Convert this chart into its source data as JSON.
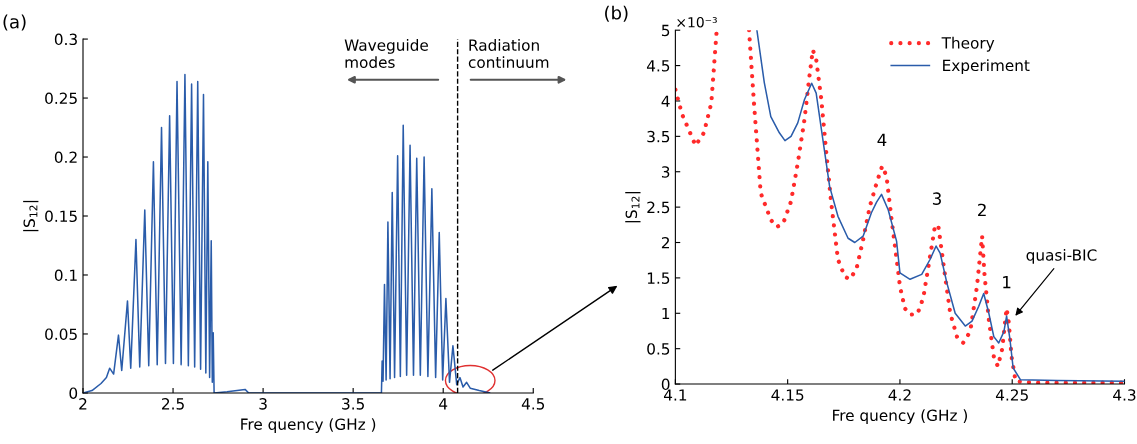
{
  "chart_data": [
    {
      "type": "line",
      "xlabel": "Fre quency (GHz )",
      "ylabel": "|S$_{12}$|",
      "xlim": [
        2,
        4.5
      ],
      "xticks": [
        2,
        2.5,
        3,
        3.5,
        4,
        4.5
      ],
      "ylim": [
        0,
        0.3
      ],
      "yticks": [
        0,
        0.05,
        0.1,
        0.15,
        0.2,
        0.25,
        0.3
      ],
      "grid": false,
      "legend": false,
      "annotations": [
        "(a)",
        "Waveguide\nmodes",
        "Radiation\ncontinuum"
      ],
      "ref_lines": [
        {
          "axis": "x",
          "value": 4.08,
          "color": "#000000",
          "line_style": "dashed"
        }
      ],
      "series": [
        {
          "color": "#2a5caa",
          "line_style": "solid",
          "x": [
            2.0,
            2.05,
            2.1,
            2.13,
            2.148,
            2.17,
            2.197,
            2.215,
            2.247,
            2.265,
            2.294,
            2.315,
            2.343,
            2.365,
            2.391,
            2.412,
            2.436,
            2.458,
            2.481,
            2.502,
            2.522,
            2.545,
            2.566,
            2.585,
            2.603,
            2.62,
            2.637,
            2.653,
            2.669,
            2.682,
            2.693,
            2.703,
            2.712,
            2.718,
            2.723,
            2.728,
            2.8,
            2.9,
            2.92,
            3.657,
            3.661,
            3.666,
            3.674,
            3.683,
            3.693,
            3.705,
            3.717,
            3.73,
            3.747,
            3.762,
            3.778,
            3.797,
            3.816,
            3.835,
            3.853,
            3.873,
            3.894,
            3.915,
            3.937,
            3.958,
            3.978,
            3.997,
            4.015,
            4.035,
            4.054,
            4.075,
            4.093,
            4.11,
            4.13,
            4.15,
            4.2,
            4.257
          ],
          "values": [
            0,
            0.002,
            0.008,
            0.013,
            0.021,
            0.016,
            0.049,
            0.019,
            0.078,
            0.021,
            0.13,
            0.022,
            0.155,
            0.023,
            0.196,
            0.024,
            0.225,
            0.025,
            0.235,
            0.025,
            0.264,
            0.024,
            0.27,
            0.023,
            0.262,
            0.022,
            0.264,
            0.02,
            0.253,
            0.017,
            0.196,
            0.013,
            0.129,
            0.009,
            0.051,
            0,
            0.001,
            0.003,
            0,
            0,
            0.027,
            0.01,
            0.092,
            0.011,
            0.145,
            0.012,
            0.17,
            0.013,
            0.201,
            0.014,
            0.227,
            0.015,
            0.21,
            0.015,
            0.199,
            0.015,
            0.2,
            0.014,
            0.173,
            0.013,
            0.136,
            0.011,
            0.08,
            0.009,
            0.04,
            0.007,
            0.013,
            0.005,
            0.009,
            0.004,
            0.002,
            0
          ]
        }
      ]
    },
    {
      "type": "line",
      "xlabel": "Fre quency (GHz )",
      "ylabel": "|S$_{12}$|",
      "xlim": [
        4.1,
        4.3
      ],
      "xticks": [
        4.1,
        4.15,
        4.2,
        4.25,
        4.3
      ],
      "ylim": [
        0,
        5
      ],
      "yticks": [
        0,
        0.5,
        1,
        1.5,
        2,
        2.5,
        3,
        3.5,
        4,
        4.5,
        5
      ],
      "grid": false,
      "legend": "top right",
      "annotations": [
        "(b)",
        "×10⁻³",
        {
          "text": "4",
          "x": 4.192,
          "y": 3.08
        },
        {
          "text": "3",
          "x": 4.2165,
          "y": 2.25
        },
        {
          "text": "2",
          "x": 4.2366,
          "y": 2.09
        },
        {
          "text": "1",
          "x": 4.2475,
          "y": 1.07
        },
        "quasi-BIC"
      ],
      "series": [
        {
          "name": "Theory",
          "color": "#ff2a2a",
          "line_style": "dotted",
          "x": [
            4.1,
            4.103,
            4.109,
            4.1127,
            4.116,
            4.1184,
            4.1258,
            4.1328,
            4.135,
            4.138,
            4.1425,
            4.1452,
            4.148,
            4.1515,
            4.1545,
            4.1575,
            4.1597,
            4.1612,
            4.1627,
            4.165,
            4.1672,
            4.1694,
            4.1724,
            4.1754,
            4.1776,
            4.1806,
            4.1836,
            4.1866,
            4.1896,
            4.1921,
            4.194,
            4.1963,
            4.1993,
            4.2,
            4.2022,
            4.2045,
            4.2078,
            4.2104,
            4.2134,
            4.2157,
            4.2172,
            4.2194,
            4.2224,
            4.2254,
            4.2281,
            4.2313,
            4.2343,
            4.2358,
            4.2366,
            4.2376,
            4.2396,
            4.2418,
            4.2436,
            4.2455,
            4.2475,
            4.2485,
            4.2497,
            4.2515,
            4.26,
            4.28,
            4.3
          ],
          "values": [
            4.16,
            3.81,
            3.37,
            3.55,
            3.97,
            5.0,
            null,
            5.0,
            3.97,
            2.7,
            2.32,
            2.22,
            2.27,
            2.58,
            3.12,
            3.74,
            4.35,
            4.72,
            4.59,
            4.02,
            3.27,
            2.56,
            1.76,
            1.52,
            1.48,
            1.62,
            2.04,
            2.51,
            2.84,
            3.08,
            2.94,
            2.32,
            1.57,
            1.38,
            1.07,
            0.98,
            0.99,
            1.22,
            1.8,
            2.25,
            2.21,
            1.69,
            1.0,
            0.67,
            0.58,
            0.74,
            1.38,
            1.85,
            2.09,
            1.57,
            0.91,
            0.39,
            0.25,
            0.49,
            1.07,
            0.86,
            0.39,
            0.04,
            0.02,
            0.02,
            0.02
          ]
        },
        {
          "name": "Experiment",
          "color": "#2a5caa",
          "line_style": "solid",
          "x": [
            4.1363,
            4.1396,
            4.1425,
            4.1463,
            4.1488,
            4.1515,
            4.1545,
            4.1575,
            4.1607,
            4.1627,
            4.1657,
            4.1687,
            4.1724,
            4.1769,
            4.1799,
            4.1836,
            4.1873,
            4.1896,
            4.1918,
            4.1948,
            4.1985,
            4.2,
            4.2045,
            4.2097,
            4.2134,
            4.2161,
            4.2179,
            4.2209,
            4.2246,
            4.2291,
            4.2321,
            4.2351,
            4.2373,
            4.2396,
            4.2418,
            4.244,
            4.2463,
            4.2475,
            4.249,
            4.2504,
            4.2537,
            4.27,
            4.3
          ],
          "values": [
            5.0,
            4.26,
            3.78,
            3.55,
            3.44,
            3.5,
            3.69,
            4.02,
            4.25,
            4.11,
            3.45,
            2.79,
            2.37,
            2.06,
            2.0,
            2.09,
            2.42,
            2.57,
            2.68,
            2.46,
            2.02,
            1.57,
            1.48,
            1.55,
            1.76,
            1.95,
            1.85,
            1.43,
            1.0,
            0.82,
            0.89,
            1.1,
            1.28,
            1.0,
            0.67,
            0.58,
            0.74,
            0.96,
            0.63,
            0.23,
            0.06,
            0.05,
            0.04
          ]
        }
      ]
    }
  ]
}
